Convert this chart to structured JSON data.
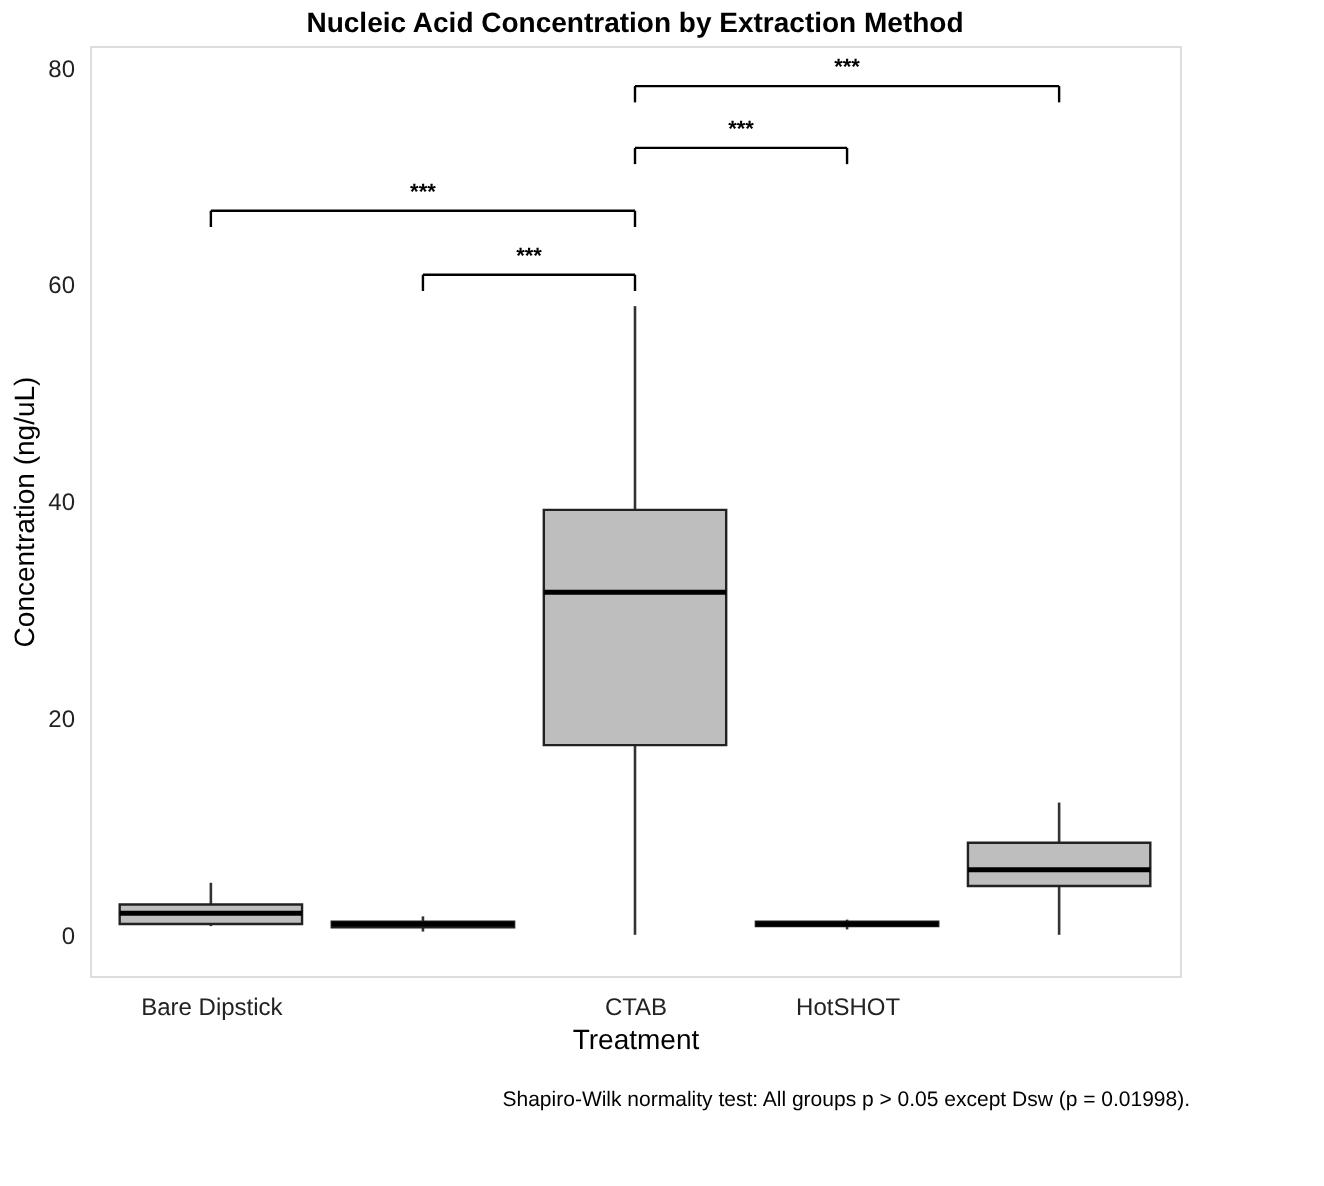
{
  "chart_data": {
    "type": "box",
    "title": "Nucleic Acid Concentration by Extraction Method",
    "xlabel": "Treatment",
    "ylabel": "Concentration (ng/uL)",
    "categories": [
      "Bare Dipstick",
      null,
      "CTAB",
      "HotSHOT",
      null
    ],
    "series": [
      {
        "color": "#bebebe",
        "boxes": [
          {
            "low": 0.8,
            "q1": 1.0,
            "median": 2.0,
            "q3": 2.8,
            "high": 4.8
          },
          {
            "low": 0.3,
            "q1": 0.7,
            "median": 1.0,
            "q3": 1.2,
            "high": 1.7
          },
          {
            "low": 0.0,
            "q1": 17.5,
            "median": 31.6,
            "q3": 39.2,
            "high": 58.0
          },
          {
            "low": 0.5,
            "q1": 0.8,
            "median": 1.0,
            "q3": 1.2,
            "high": 1.4
          },
          {
            "low": 0.0,
            "q1": 4.5,
            "median": 6.0,
            "q3": 8.5,
            "high": 12.2
          }
        ]
      }
    ],
    "ylim": [
      -3.8,
      82
    ],
    "yticks": [
      0,
      20,
      40,
      60,
      80
    ],
    "grid": false,
    "annotations": [
      "***",
      "***",
      "***",
      "***",
      "Shapiro-Wilk normality test: All groups p > 0.05 except Dsw (p = 0.01998)."
    ]
  }
}
